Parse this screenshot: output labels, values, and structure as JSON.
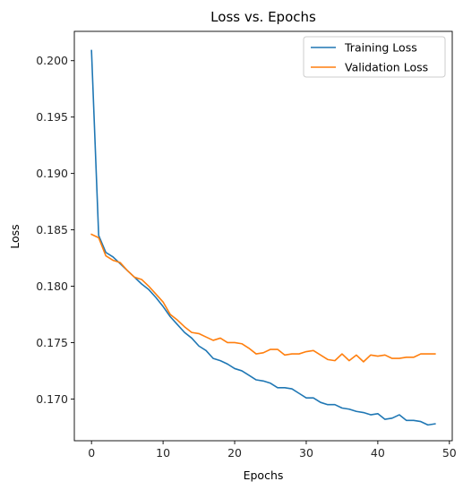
{
  "chart_data": {
    "type": "line",
    "title": "Loss vs. Epochs",
    "xlabel": "Epochs",
    "ylabel": "Loss",
    "xlim": [
      -2.4,
      50.4
    ],
    "ylim": [
      0.1663,
      0.2026
    ],
    "xticks": [
      0,
      10,
      20,
      30,
      40,
      50
    ],
    "yticks": [
      0.17,
      0.175,
      0.18,
      0.185,
      0.19,
      0.195,
      0.2
    ],
    "ytick_labels": [
      "0.170",
      "0.175",
      "0.180",
      "0.185",
      "0.190",
      "0.195",
      "0.200"
    ],
    "grid": false,
    "legend_position": "top-right",
    "x": [
      0,
      1,
      2,
      3,
      4,
      5,
      6,
      7,
      8,
      9,
      10,
      11,
      12,
      13,
      14,
      15,
      16,
      17,
      18,
      19,
      20,
      21,
      22,
      23,
      24,
      25,
      26,
      27,
      28,
      29,
      30,
      31,
      32,
      33,
      34,
      35,
      36,
      37,
      38,
      39,
      40,
      41,
      42,
      43,
      44,
      45,
      46,
      47,
      48
    ],
    "series": [
      {
        "name": "Training Loss",
        "color": "#1f77b4",
        "values": [
          0.2009,
          0.1845,
          0.183,
          0.1826,
          0.182,
          0.1814,
          0.1808,
          0.1802,
          0.1797,
          0.179,
          0.1782,
          0.1773,
          0.1766,
          0.1759,
          0.1754,
          0.1747,
          0.1743,
          0.1736,
          0.1734,
          0.1731,
          0.1727,
          0.1725,
          0.1721,
          0.1717,
          0.1716,
          0.1714,
          0.171,
          0.171,
          0.1709,
          0.1705,
          0.1701,
          0.1701,
          0.1697,
          0.1695,
          0.1695,
          0.1692,
          0.1691,
          0.1689,
          0.1688,
          0.1686,
          0.1687,
          0.1682,
          0.1683,
          0.1686,
          0.1681,
          0.1681,
          0.168,
          0.1677,
          0.1678
        ]
      },
      {
        "name": "Validation Loss",
        "color": "#ff7f0e",
        "values": [
          0.1846,
          0.1843,
          0.1827,
          0.1823,
          0.1821,
          0.1814,
          0.1808,
          0.1806,
          0.18,
          0.1793,
          0.1786,
          0.1775,
          0.177,
          0.1764,
          0.1759,
          0.1758,
          0.1755,
          0.1752,
          0.1754,
          0.175,
          0.175,
          0.1749,
          0.1745,
          0.174,
          0.1741,
          0.1744,
          0.1744,
          0.1739,
          0.174,
          0.174,
          0.1742,
          0.1743,
          0.1739,
          0.1735,
          0.1734,
          0.174,
          0.1734,
          0.1739,
          0.1733,
          0.1739,
          0.1738,
          0.1739,
          0.1736,
          0.1736,
          0.1737,
          0.1737,
          0.174,
          0.174,
          0.174
        ]
      }
    ]
  }
}
